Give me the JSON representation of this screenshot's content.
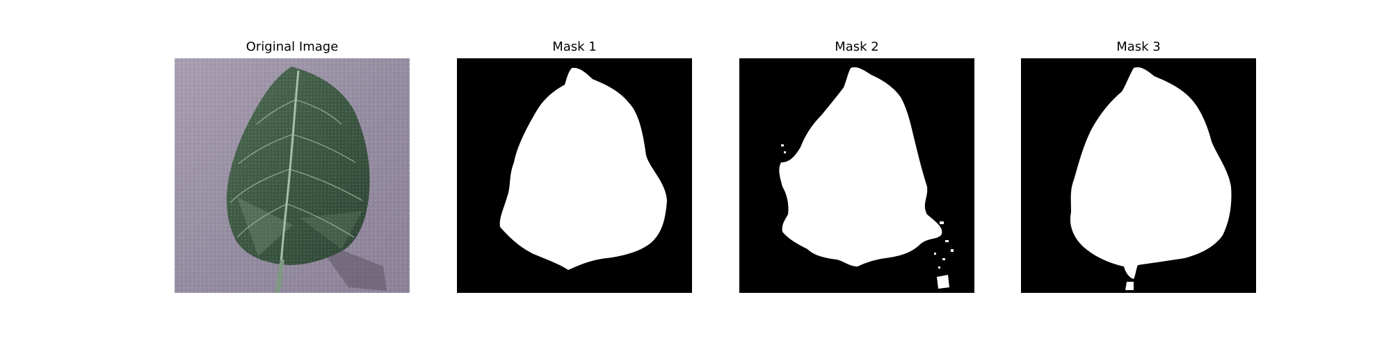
{
  "figure": {
    "panels": [
      {
        "title": "Original Image"
      },
      {
        "title": "Mask 1"
      },
      {
        "title": "Mask 2"
      },
      {
        "title": "Mask 3"
      }
    ]
  },
  "colors": {
    "background": "#ffffff",
    "mask_background": "#000000",
    "mask_foreground": "#ffffff",
    "leaf_green": "#3f5a45",
    "surface_lavender": "#9c93a6"
  }
}
